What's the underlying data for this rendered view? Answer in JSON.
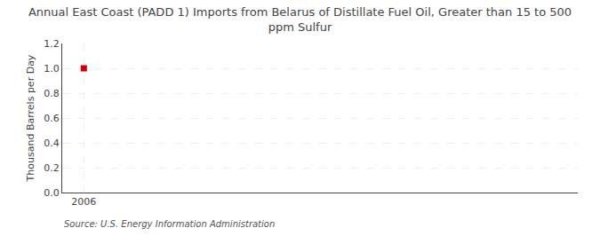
{
  "chart_data": {
    "type": "scatter",
    "title": "Annual East Coast (PADD 1) Imports from Belarus of Distillate Fuel Oil, Greater than 15 to 500\nppm Sulfur",
    "ylabel": "Thousand Barrels per Day",
    "source": "Source: U.S. Energy Information Administration",
    "x": [
      2006
    ],
    "values": [
      1.0
    ],
    "color": "#cc0000",
    "marker": "square",
    "xlim": [
      2005.3,
      2022
    ],
    "xticks": [
      2006
    ],
    "ylim": [
      0.0,
      1.2
    ],
    "yticks": [
      {
        "value": 0,
        "label": "0.0"
      },
      0.2,
      0.4,
      0.6,
      0.8,
      {
        "value": 1,
        "label": "1.0"
      },
      1.2
    ],
    "grid": true
  }
}
